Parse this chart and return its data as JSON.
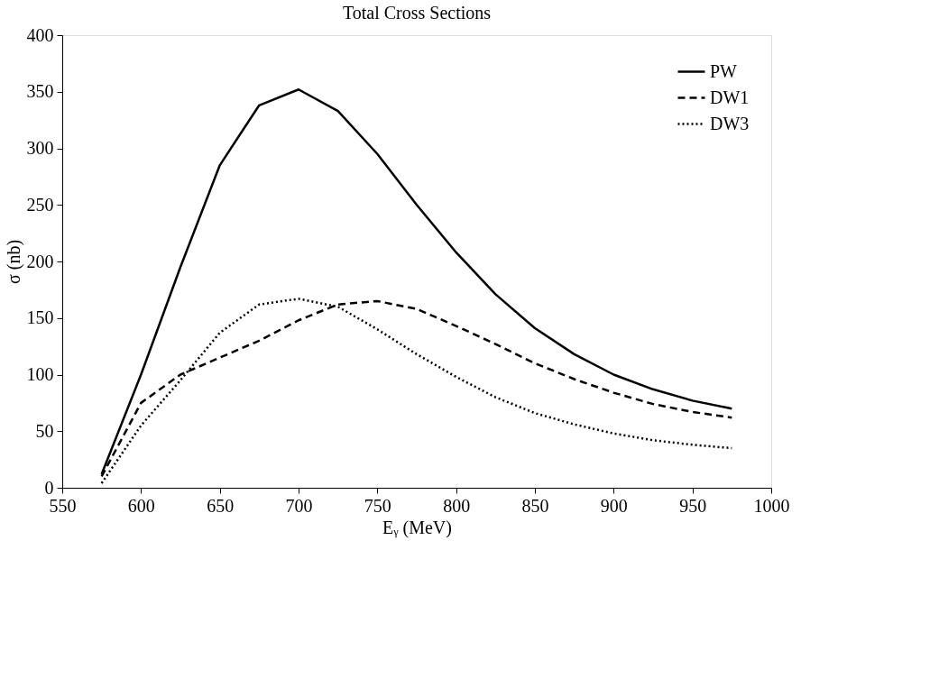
{
  "chart_data": {
    "type": "line",
    "title": "Total Cross Sections",
    "xlabel": "Eᵧ (MeV)",
    "ylabel": "σ (nb)",
    "x": [
      575,
      600,
      625,
      650,
      675,
      700,
      725,
      750,
      775,
      800,
      825,
      850,
      875,
      900,
      925,
      950,
      975
    ],
    "xlim": [
      550,
      1000
    ],
    "xticks": [
      550,
      600,
      650,
      700,
      750,
      800,
      850,
      900,
      950,
      1000
    ],
    "ylim": [
      0,
      400
    ],
    "yticks": [
      0,
      50,
      100,
      150,
      200,
      250,
      300,
      350,
      400
    ],
    "grid": false,
    "legend": "top right",
    "marker": "none",
    "series": [
      {
        "name": "PW",
        "color": "#000000",
        "line_style": "solid",
        "values": [
          12,
          100,
          195,
          285,
          338,
          352,
          333,
          295,
          250,
          208,
          171,
          141,
          118,
          100,
          87,
          77,
          70
        ]
      },
      {
        "name": "DW1",
        "color": "#000000",
        "line_style": "dashed",
        "values": [
          10,
          75,
          100,
          115,
          130,
          148,
          162,
          165,
          158,
          143,
          127,
          110,
          96,
          84,
          74,
          67,
          62
        ]
      },
      {
        "name": "DW3",
        "color": "#000000",
        "line_style": "dotted",
        "values": [
          4,
          55,
          95,
          137,
          162,
          167,
          160,
          140,
          118,
          98,
          80,
          66,
          56,
          48,
          42,
          38,
          35
        ]
      }
    ]
  }
}
